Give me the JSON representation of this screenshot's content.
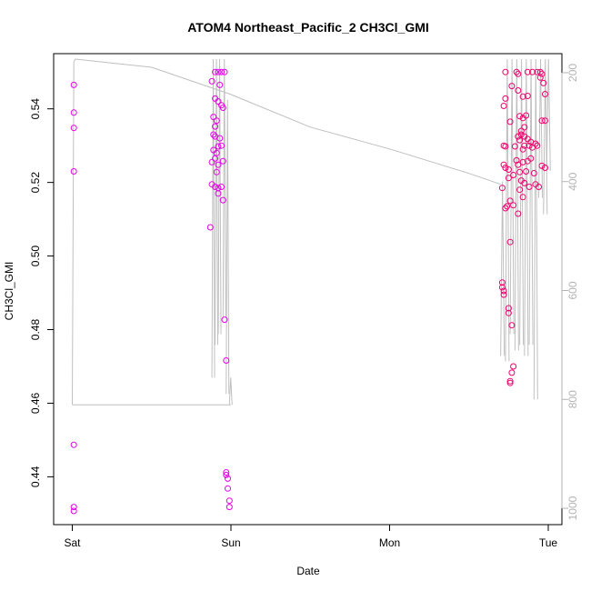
{
  "chart_data": {
    "type": "scatter",
    "title": "ATOM4 Northeast_Pacific_2 CH3Cl_GMI",
    "xlabel": "Date",
    "ylabel": "CH3Cl_GMI",
    "x_ticks": [
      "Sat",
      "Sun",
      "Mon",
      "Tue"
    ],
    "x_range_days": [
      -0.05,
      3.1
    ],
    "ylim": [
      0.427,
      0.555
    ],
    "y_ticks": [
      "0.44",
      "0.46",
      "0.48",
      "0.50",
      "0.52",
      "0.54"
    ],
    "y_tick_values": [
      0.44,
      0.46,
      0.48,
      0.5,
      0.52,
      0.54
    ],
    "right_axis": {
      "label": "",
      "ylim": [
        1030,
        165
      ],
      "ticks": [
        "200",
        "400",
        "600",
        "800",
        "1000"
      ],
      "tick_values": [
        200,
        400,
        600,
        800,
        1000
      ],
      "color": "#b3b3b3"
    },
    "grid": false,
    "series": [
      {
        "marker": "open-circle",
        "color": "#e600e6",
        "points_sat": [
          [
            0.01,
            0.5465
          ],
          [
            0.01,
            0.539
          ],
          [
            0.01,
            0.5348
          ],
          [
            0.01,
            0.523
          ],
          [
            0.01,
            0.4487
          ],
          [
            0.01,
            0.4318
          ],
          [
            0.01,
            0.4307
          ]
        ],
        "points_sun_cluster": [
          [
            0.9,
            0.55
          ],
          [
            0.92,
            0.55
          ],
          [
            0.94,
            0.55
          ],
          [
            0.96,
            0.55
          ],
          [
            0.88,
            0.5475
          ],
          [
            0.93,
            0.5465
          ],
          [
            0.9,
            0.5428
          ],
          [
            0.92,
            0.542
          ],
          [
            0.94,
            0.541
          ],
          [
            0.95,
            0.5403
          ],
          [
            0.89,
            0.5378
          ],
          [
            0.91,
            0.5368
          ],
          [
            0.9,
            0.5352
          ],
          [
            0.89,
            0.533
          ],
          [
            0.9,
            0.5325
          ],
          [
            0.93,
            0.532
          ],
          [
            0.94,
            0.53
          ],
          [
            0.92,
            0.5298
          ],
          [
            0.89,
            0.5288
          ],
          [
            0.91,
            0.528
          ],
          [
            0.9,
            0.5265
          ],
          [
            0.95,
            0.5258
          ],
          [
            0.88,
            0.5255
          ],
          [
            0.92,
            0.5248
          ],
          [
            0.91,
            0.5228
          ],
          [
            0.88,
            0.5195
          ],
          [
            0.9,
            0.5188
          ],
          [
            0.92,
            0.5185
          ],
          [
            0.94,
            0.5188
          ],
          [
            0.92,
            0.517
          ],
          [
            0.95,
            0.5152
          ],
          [
            0.87,
            0.5078
          ],
          [
            0.96,
            0.4827
          ],
          [
            0.97,
            0.4716
          ],
          [
            0.97,
            0.4412
          ],
          [
            0.97,
            0.4405
          ],
          [
            0.98,
            0.4395
          ],
          [
            0.98,
            0.4368
          ],
          [
            0.99,
            0.4335
          ],
          [
            0.99,
            0.4318
          ]
        ],
        "points_tue_cluster": [
          [
            2.73,
            0.55
          ],
          [
            2.8,
            0.55
          ],
          [
            2.81,
            0.5495
          ],
          [
            2.87,
            0.55
          ],
          [
            2.9,
            0.55
          ],
          [
            2.93,
            0.55
          ],
          [
            2.95,
            0.55
          ],
          [
            2.96,
            0.5495
          ],
          [
            2.95,
            0.5485
          ],
          [
            2.97,
            0.547
          ],
          [
            2.77,
            0.5462
          ],
          [
            2.81,
            0.545
          ],
          [
            2.84,
            0.5433
          ],
          [
            2.87,
            0.5435
          ],
          [
            2.98,
            0.544
          ],
          [
            2.73,
            0.5428
          ],
          [
            2.72,
            0.5408
          ],
          [
            2.82,
            0.538
          ],
          [
            2.84,
            0.5375
          ],
          [
            2.86,
            0.5382
          ],
          [
            2.76,
            0.5365
          ],
          [
            2.83,
            0.534
          ],
          [
            2.85,
            0.535
          ],
          [
            2.96,
            0.5368
          ],
          [
            2.98,
            0.5368
          ],
          [
            2.81,
            0.5325
          ],
          [
            2.82,
            0.5315
          ],
          [
            2.83,
            0.533
          ],
          [
            2.85,
            0.5325
          ],
          [
            2.87,
            0.5318
          ],
          [
            2.88,
            0.53
          ],
          [
            2.89,
            0.531
          ],
          [
            2.9,
            0.5295
          ],
          [
            2.92,
            0.5305
          ],
          [
            2.93,
            0.53
          ],
          [
            2.72,
            0.53
          ],
          [
            2.73,
            0.5298
          ],
          [
            2.79,
            0.5298
          ],
          [
            2.84,
            0.529
          ],
          [
            2.85,
            0.53
          ],
          [
            2.8,
            0.526
          ],
          [
            2.81,
            0.5248
          ],
          [
            2.84,
            0.5255
          ],
          [
            2.87,
            0.5258
          ],
          [
            2.89,
            0.5265
          ],
          [
            2.72,
            0.5248
          ],
          [
            2.73,
            0.524
          ],
          [
            2.75,
            0.5235
          ],
          [
            2.82,
            0.5228
          ],
          [
            2.86,
            0.523
          ],
          [
            2.91,
            0.5225
          ],
          [
            2.96,
            0.5245
          ],
          [
            2.98,
            0.524
          ],
          [
            2.75,
            0.5212
          ],
          [
            2.78,
            0.522
          ],
          [
            2.83,
            0.5205
          ],
          [
            2.85,
            0.5198
          ],
          [
            2.88,
            0.5188
          ],
          [
            2.92,
            0.5195
          ],
          [
            2.94,
            0.5188
          ],
          [
            2.71,
            0.5185
          ],
          [
            2.82,
            0.518
          ],
          [
            2.84,
            0.516
          ],
          [
            2.76,
            0.515
          ],
          [
            2.74,
            0.5135
          ],
          [
            2.73,
            0.513
          ],
          [
            2.78,
            0.5138
          ],
          [
            2.81,
            0.5115
          ],
          [
            2.76,
            0.5038
          ],
          [
            2.71,
            0.4928
          ],
          [
            2.71,
            0.4915
          ],
          [
            2.72,
            0.4905
          ],
          [
            2.72,
            0.4895
          ],
          [
            2.75,
            0.4858
          ],
          [
            2.75,
            0.4845
          ],
          [
            2.77,
            0.4812
          ],
          [
            2.78,
            0.47
          ],
          [
            2.77,
            0.4683
          ],
          [
            2.76,
            0.466
          ],
          [
            2.76,
            0.4655
          ]
        ]
      }
    ],
    "gray_lines": [
      {
        "description": "pressure trace",
        "color": "#bfbfbf"
      }
    ]
  }
}
